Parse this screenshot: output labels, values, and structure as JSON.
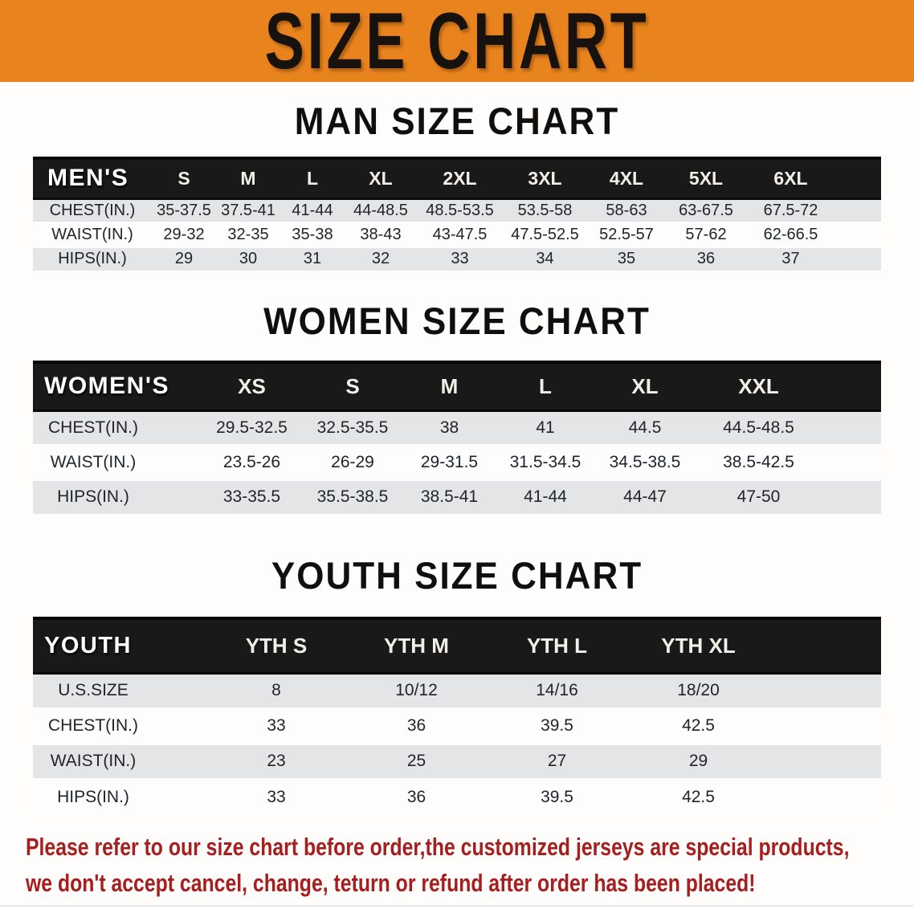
{
  "banner": {
    "title": "SIZE CHART"
  },
  "colors": {
    "banner_bg": "#E8831E",
    "table_header_bg": "#191919",
    "row_gray": "#E3E5E7",
    "row_white": "#FDFDFD",
    "disclaimer_red": "#A61E1E",
    "title_black": "#0F0F0F"
  },
  "sections": {
    "men": {
      "title": "MAN SIZE CHART",
      "table": {
        "header": [
          "MEN'S",
          "S",
          "M",
          "L",
          "XL",
          "2XL",
          "3XL",
          "4XL",
          "5XL",
          "6XL"
        ],
        "rows": [
          {
            "label": "CHEST(IN.)",
            "values": [
              "35-37.5",
              "37.5-41",
              "41-44",
              "44-48.5",
              "48.5-53.5",
              "53.5-58",
              "58-63",
              "63-67.5",
              "67.5-72"
            ]
          },
          {
            "label": "WAIST(IN.)",
            "values": [
              "29-32",
              "32-35",
              "35-38",
              "38-43",
              "43-47.5",
              "47.5-52.5",
              "52.5-57",
              "57-62",
              "62-66.5"
            ]
          },
          {
            "label": "HIPS(IN.)",
            "values": [
              "29",
              "30",
              "31",
              "32",
              "33",
              "34",
              "35",
              "36",
              "37"
            ]
          }
        ]
      }
    },
    "women": {
      "title": "WOMEN SIZE CHART",
      "table": {
        "header": [
          "WOMEN'S",
          "XS",
          "S",
          "M",
          "L",
          "XL",
          "XXL"
        ],
        "rows": [
          {
            "label": "CHEST(IN.)",
            "values": [
              "29.5-32.5",
              "32.5-35.5",
              "38",
              "41",
              "44.5",
              "44.5-48.5"
            ]
          },
          {
            "label": "WAIST(IN.)",
            "values": [
              "23.5-26",
              "26-29",
              "29-31.5",
              "31.5-34.5",
              "34.5-38.5",
              "38.5-42.5"
            ]
          },
          {
            "label": "HIPS(IN.)",
            "values": [
              "33-35.5",
              "35.5-38.5",
              "38.5-41",
              "41-44",
              "44-47",
              "47-50"
            ]
          }
        ]
      }
    },
    "youth": {
      "title": "YOUTH SIZE CHART",
      "table": {
        "header": [
          "YOUTH",
          "YTH S",
          "YTH M",
          "YTH L",
          "YTH XL"
        ],
        "rows": [
          {
            "label": "U.S.SIZE",
            "values": [
              "8",
              "10/12",
              "14/16",
              "18/20"
            ]
          },
          {
            "label": "CHEST(IN.)",
            "values": [
              "33",
              "36",
              "39.5",
              "42.5"
            ]
          },
          {
            "label": "WAIST(IN.)",
            "values": [
              "23",
              "25",
              "27",
              "29"
            ]
          },
          {
            "label": "HIPS(IN.)",
            "values": [
              "33",
              "36",
              "39.5",
              "42.5"
            ]
          }
        ]
      }
    }
  },
  "disclaimer": {
    "line1": "Please refer to our size chart before order,the customized jerseys are special products,",
    "line2": "we don't accept cancel, change, teturn or refund after order has been placed!"
  }
}
